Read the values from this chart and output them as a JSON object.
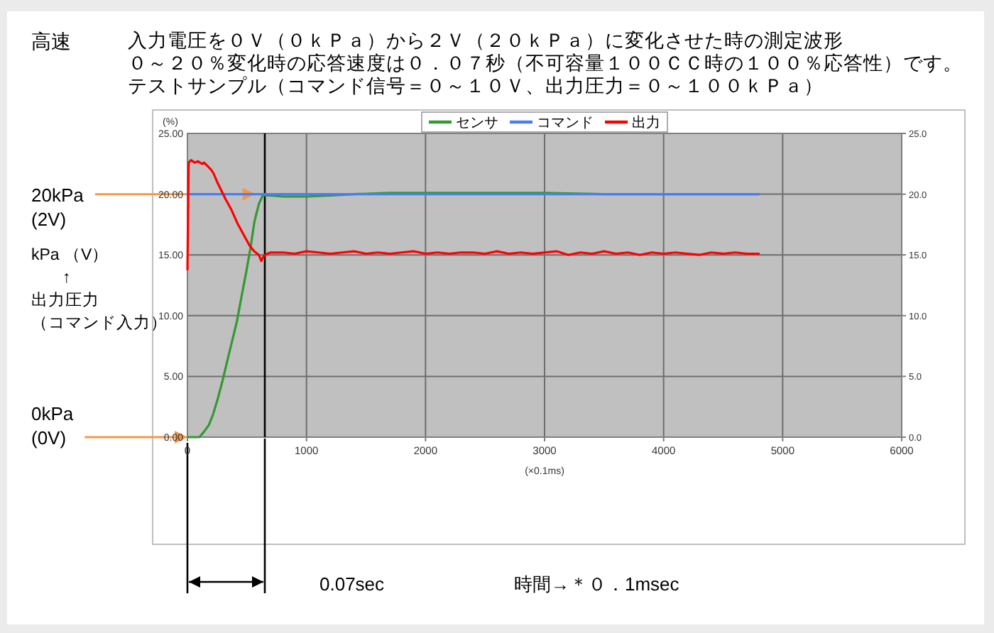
{
  "chart_data": {
    "type": "line",
    "title": "高速",
    "subtitle": "入力電圧を０Ｖ（０ｋＰａ）から２Ｖ（２０ｋＰａ）に変化させた時の測定波形",
    "xlabel": "(×0.1ms)",
    "ylabel": "(%)",
    "xlim": [
      0,
      6000
    ],
    "xticks": [
      0,
      1000,
      2000,
      3000,
      4000,
      5000,
      6000
    ],
    "ylim": [
      0,
      25
    ],
    "yticks": [
      {
        "value": 0,
        "label": "0.00"
      },
      {
        "value": 5,
        "label": "5.00"
      },
      {
        "value": 10,
        "label": "10.00"
      },
      {
        "value": 15,
        "label": "15.00"
      },
      {
        "value": 20,
        "label": "20.00"
      },
      {
        "value": 25,
        "label": "25.00"
      }
    ],
    "y2lim": [
      0,
      25
    ],
    "y2ticks": [
      {
        "value": 0,
        "label": "0.0"
      },
      {
        "value": 5,
        "label": "5.0"
      },
      {
        "value": 10,
        "label": "10.0"
      },
      {
        "value": 15,
        "label": "15.0"
      },
      {
        "value": 20,
        "label": "20.0"
      },
      {
        "value": 25,
        "label": "25.0"
      }
    ],
    "grid": true,
    "legend": "top",
    "line_style": "solid",
    "series": [
      {
        "name": "センサ",
        "color": "#339933",
        "x": [
          0,
          100,
          136,
          180,
          216,
          256,
          296,
          350,
          415,
          455,
          494,
          530,
          562,
          600,
          633,
          700,
          800,
          900,
          1000,
          1200,
          1400,
          1700,
          2000,
          2500,
          3000,
          3500,
          4000,
          4800
        ],
        "values": [
          0,
          0,
          0.4,
          1.0,
          1.9,
          3.2,
          4.7,
          6.9,
          9.5,
          11.6,
          13.6,
          15.6,
          17.7,
          19.2,
          19.9,
          19.9,
          19.8,
          19.8,
          19.8,
          19.9,
          20.0,
          20.1,
          20.1,
          20.1,
          20.1,
          20.0,
          20.0,
          20.0
        ]
      },
      {
        "name": "コマンド",
        "color": "#4a7ef0",
        "x": [
          0,
          4800
        ],
        "values": [
          20,
          20
        ]
      },
      {
        "name": "出力",
        "color": "#ff0000",
        "x": [
          0,
          10,
          30,
          60,
          90,
          120,
          140,
          170,
          200,
          220,
          250,
          280,
          320,
          370,
          420,
          470,
          520,
          560,
          600,
          620,
          640,
          670,
          700,
          800,
          900,
          1000,
          1100,
          1200,
          1300,
          1400,
          1500,
          1600,
          1700,
          1800,
          1900,
          2000,
          2100,
          2200,
          2300,
          2400,
          2500,
          2600,
          2700,
          2800,
          2900,
          3000,
          3100,
          3200,
          3300,
          3400,
          3500,
          3600,
          3700,
          3800,
          3900,
          4000,
          4100,
          4200,
          4300,
          4400,
          4500,
          4600,
          4700,
          4800
        ],
        "values": [
          13.8,
          22.6,
          22.8,
          22.6,
          22.7,
          22.5,
          22.6,
          22.3,
          22.0,
          21.7,
          21.0,
          20.4,
          19.6,
          18.7,
          17.6,
          16.7,
          15.8,
          15.3,
          15.0,
          14.5,
          14.9,
          15.1,
          15.2,
          15.2,
          15.1,
          15.3,
          15.2,
          15.1,
          15.2,
          15.3,
          15.1,
          15.2,
          15.1,
          15.2,
          15.3,
          15.1,
          15.2,
          15.1,
          15.2,
          15.2,
          15.1,
          15.3,
          15.1,
          15.2,
          15.1,
          15.2,
          15.3,
          15.0,
          15.2,
          15.1,
          15.3,
          15.1,
          15.2,
          15.0,
          15.2,
          15.1,
          15.2,
          15.1,
          15.0,
          15.2,
          15.1,
          15.2,
          15.1,
          15.1
        ]
      }
    ],
    "ref_lines": [
      {
        "axis": "x",
        "value": 650,
        "color": "#000000"
      }
    ],
    "annotations": [
      "０～２０％変化時の応答速度は０．０７秒（不可容量１００ＣＣ時の１００％応答性）です。",
      "テストサンプル（コマンド信号＝０～１０Ｖ、出力圧力＝０～１００ｋＰａ）",
      {
        "text": "20kPa\n(2V)",
        "x": 570,
        "y": 20
      },
      "kPa （V）\n↑\n出力圧力（コマンド入力）",
      {
        "text": "0kPa\n(0V)",
        "x": 0,
        "y": 0
      },
      "0.07sec",
      "時間→＊０．1msec"
    ]
  }
}
